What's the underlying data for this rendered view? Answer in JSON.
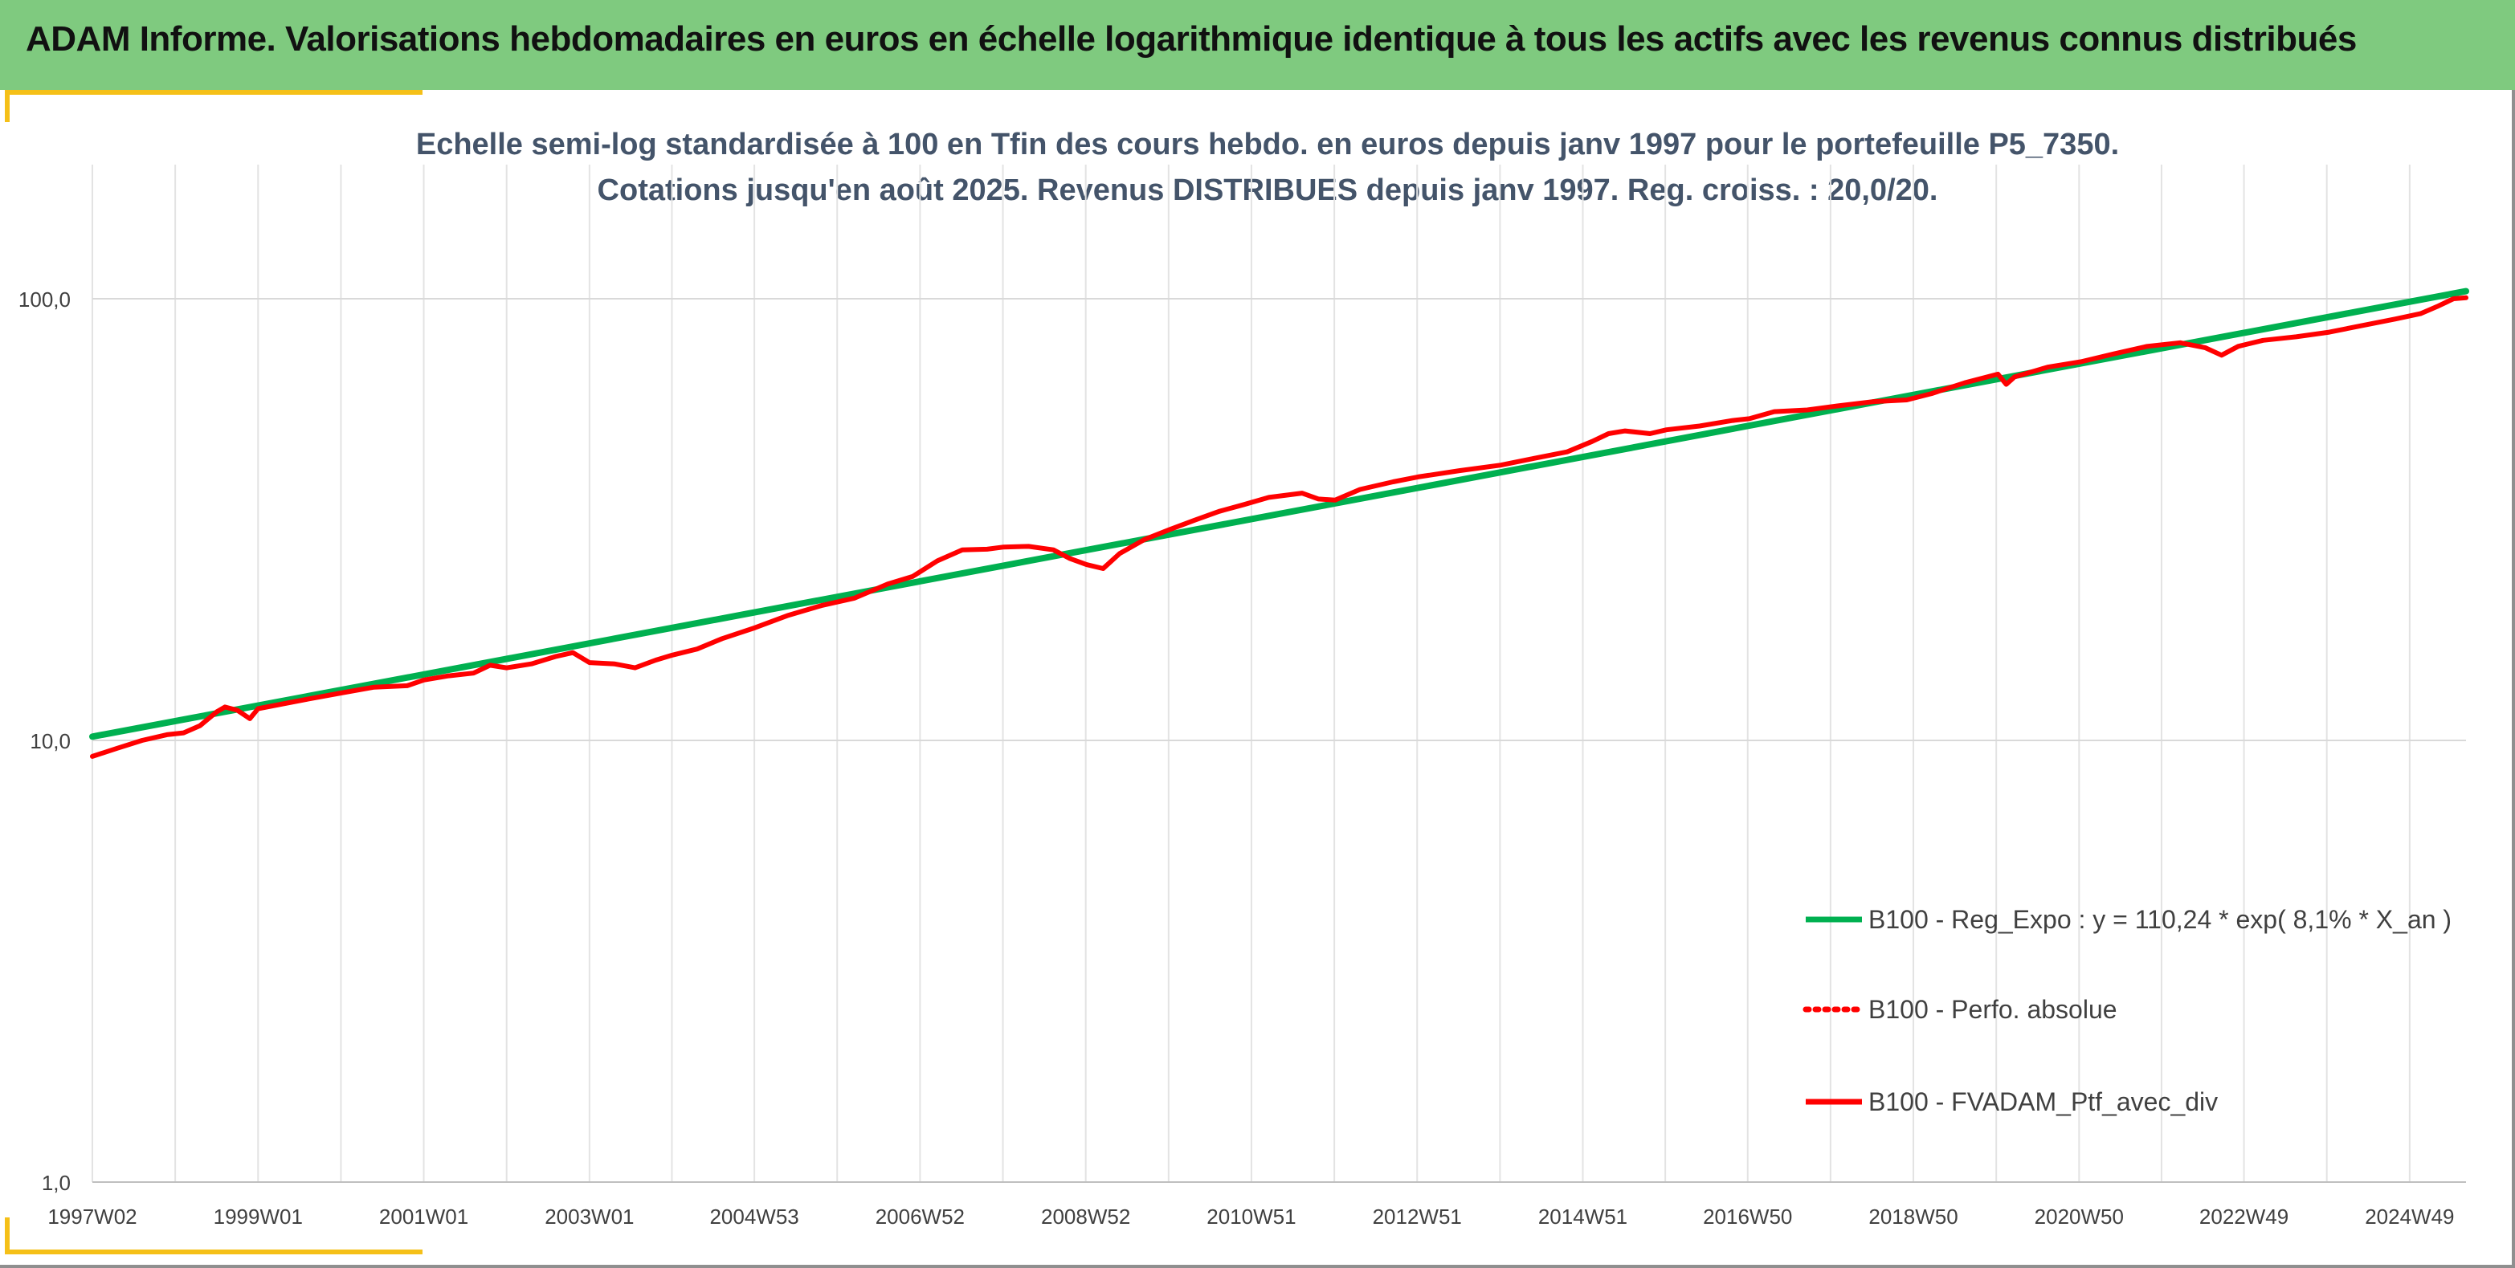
{
  "banner": {
    "title": "ADAM Informe. Valorisations hebdomadaires en euros en échelle logarithmique identique à tous les actifs avec les revenus connus distribués"
  },
  "chart_data": {
    "type": "line",
    "title_line1": "Echelle semi-log standardisée à 100 en Tfin des cours hebdo. en euros depuis janv 1997 pour le portefeuille P5_7350.",
    "title_line2": "Cotations jusqu'en août 2025. Revenus DISTRIBUES depuis janv 1997. Reg. croiss. : 20,0/20.",
    "y_scale": "log",
    "ylim": [
      1,
      200
    ],
    "y_ticks": [
      1,
      10,
      100
    ],
    "y_tick_labels": [
      "1,0",
      "10,0",
      "100,0"
    ],
    "x_range": [
      1997.0,
      2025.65
    ],
    "x_tick_positions": [
      1997.0,
      1999.0,
      2001.0,
      2003.0,
      2004.99,
      2006.99,
      2008.99,
      2010.99,
      2012.99,
      2014.99,
      2016.98,
      2018.98,
      2020.98,
      2022.97,
      2024.97
    ],
    "x_tick_labels": [
      "1997W02",
      "1999W01",
      "2001W01",
      "2003W01",
      "2004W53",
      "2006W52",
      "2008W52",
      "2010W51",
      "2012W51",
      "2014W51",
      "2016W50",
      "2018W50",
      "2020W50",
      "2022W49",
      "2024W49"
    ],
    "grid": "vertical and horizontal",
    "legend_position": "right",
    "series": [
      {
        "name": "B100 - Reg_Expo : y = 110,24 * exp( 8,1% *  X_an )",
        "color": "#00b050",
        "style": "solid",
        "points": [
          [
            1997.0,
            10.2
          ],
          [
            2025.65,
            104.0
          ]
        ]
      },
      {
        "name": "B100 - Perfo. absolue",
        "color": "#ff0000",
        "style": "dotted",
        "points": []
      },
      {
        "name": "B100 - FVADAM_Ptf_avec_div",
        "color": "#ff0000",
        "style": "solid",
        "points": [
          [
            1997.0,
            9.2
          ],
          [
            1997.3,
            9.6
          ],
          [
            1997.6,
            10.0
          ],
          [
            1997.9,
            10.3
          ],
          [
            1998.1,
            10.4
          ],
          [
            1998.3,
            10.8
          ],
          [
            1998.5,
            11.6
          ],
          [
            1998.6,
            11.9
          ],
          [
            1998.75,
            11.7
          ],
          [
            1998.9,
            11.2
          ],
          [
            1999.0,
            11.8
          ],
          [
            1999.3,
            12.1
          ],
          [
            1999.6,
            12.4
          ],
          [
            2000.0,
            12.8
          ],
          [
            2000.4,
            13.2
          ],
          [
            2000.8,
            13.3
          ],
          [
            2001.0,
            13.7
          ],
          [
            2001.3,
            14.0
          ],
          [
            2001.6,
            14.2
          ],
          [
            2001.8,
            14.8
          ],
          [
            2002.0,
            14.6
          ],
          [
            2002.3,
            14.9
          ],
          [
            2002.6,
            15.5
          ],
          [
            2002.8,
            15.8
          ],
          [
            2003.0,
            15.0
          ],
          [
            2003.3,
            14.9
          ],
          [
            2003.55,
            14.6
          ],
          [
            2003.8,
            15.2
          ],
          [
            2004.0,
            15.6
          ],
          [
            2004.3,
            16.1
          ],
          [
            2004.6,
            17.0
          ],
          [
            2005.0,
            18.0
          ],
          [
            2005.4,
            19.2
          ],
          [
            2005.8,
            20.2
          ],
          [
            2006.2,
            21.0
          ],
          [
            2006.6,
            22.6
          ],
          [
            2006.9,
            23.5
          ],
          [
            2007.2,
            25.5
          ],
          [
            2007.5,
            27.0
          ],
          [
            2007.8,
            27.1
          ],
          [
            2008.0,
            27.4
          ],
          [
            2008.3,
            27.5
          ],
          [
            2008.6,
            27.0
          ],
          [
            2008.8,
            25.8
          ],
          [
            2009.0,
            25.0
          ],
          [
            2009.2,
            24.5
          ],
          [
            2009.4,
            26.5
          ],
          [
            2009.7,
            28.5
          ],
          [
            2010.0,
            30.0
          ],
          [
            2010.3,
            31.5
          ],
          [
            2010.6,
            33.0
          ],
          [
            2010.9,
            34.2
          ],
          [
            2011.2,
            35.5
          ],
          [
            2011.6,
            36.3
          ],
          [
            2011.8,
            35.2
          ],
          [
            2012.0,
            35.0
          ],
          [
            2012.3,
            37.0
          ],
          [
            2012.7,
            38.5
          ],
          [
            2013.0,
            39.5
          ],
          [
            2013.5,
            40.8
          ],
          [
            2014.0,
            42.0
          ],
          [
            2014.4,
            43.5
          ],
          [
            2014.8,
            45.0
          ],
          [
            2015.1,
            47.5
          ],
          [
            2015.3,
            49.5
          ],
          [
            2015.5,
            50.2
          ],
          [
            2015.8,
            49.5
          ],
          [
            2016.0,
            50.5
          ],
          [
            2016.4,
            51.5
          ],
          [
            2016.8,
            53.0
          ],
          [
            2017.0,
            53.5
          ],
          [
            2017.3,
            55.5
          ],
          [
            2017.7,
            56.0
          ],
          [
            2018.0,
            57.0
          ],
          [
            2018.5,
            58.5
          ],
          [
            2018.9,
            59.0
          ],
          [
            2019.2,
            61.0
          ],
          [
            2019.6,
            64.5
          ],
          [
            2020.0,
            67.5
          ],
          [
            2020.1,
            64.0
          ],
          [
            2020.2,
            66.5
          ],
          [
            2020.6,
            70.0
          ],
          [
            2021.0,
            72.0
          ],
          [
            2021.4,
            75.0
          ],
          [
            2021.8,
            78.0
          ],
          [
            2022.2,
            79.5
          ],
          [
            2022.5,
            77.5
          ],
          [
            2022.7,
            74.5
          ],
          [
            2022.9,
            78.0
          ],
          [
            2023.2,
            80.5
          ],
          [
            2023.6,
            82.0
          ],
          [
            2024.0,
            84.0
          ],
          [
            2024.4,
            87.0
          ],
          [
            2024.8,
            90.0
          ],
          [
            2025.1,
            92.5
          ],
          [
            2025.3,
            96.0
          ],
          [
            2025.5,
            100.0
          ],
          [
            2025.65,
            100.5
          ]
        ]
      }
    ]
  }
}
